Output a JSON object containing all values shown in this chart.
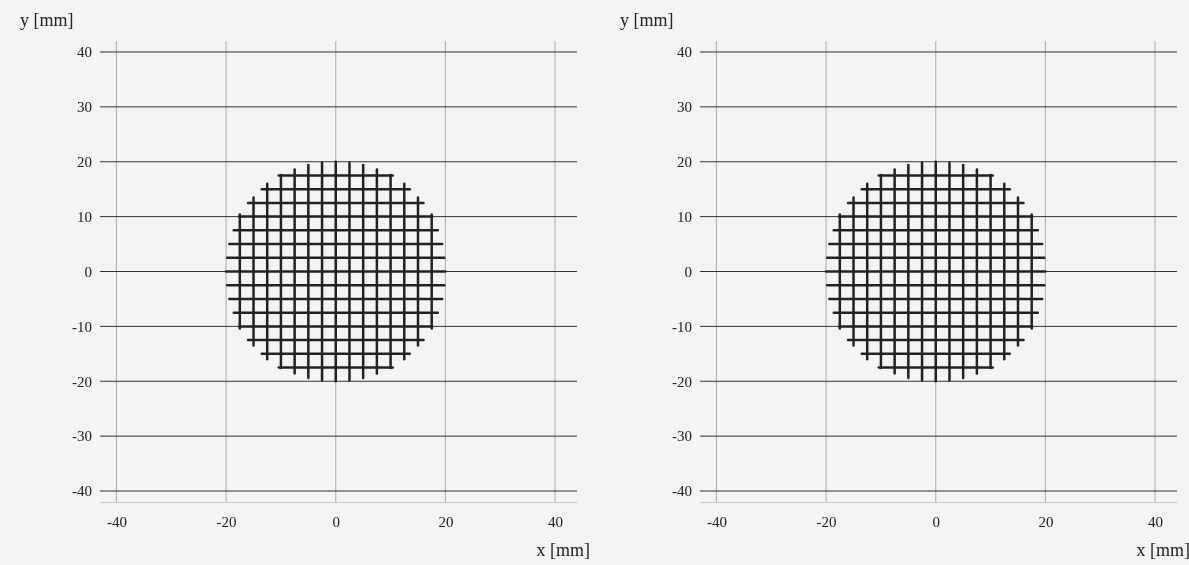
{
  "chart_data": [
    {
      "type": "line",
      "xlabel": "x [mm]",
      "ylabel": "y [mm]",
      "xlim": [
        -43,
        44
      ],
      "ylim": [
        -42,
        42
      ],
      "xticks": [
        -40,
        -20,
        0,
        20,
        40
      ],
      "yticks": [
        -40,
        -30,
        -20,
        -10,
        0,
        10,
        20,
        30,
        40
      ],
      "grid": true,
      "series": [
        {
          "color": "#222222",
          "x": [
            -10.4,
            10.4
          ],
          "values": [
            -17.5,
            -17.5
          ]
        },
        {
          "color": "#222222",
          "x": [
            -13.5,
            13.5
          ],
          "values": [
            -15,
            -15
          ]
        },
        {
          "color": "#222222",
          "x": [
            -16,
            16
          ],
          "values": [
            -12.5,
            -12.5
          ]
        },
        {
          "color": "#222222",
          "x": [
            -17.6,
            17.6
          ],
          "values": [
            -10,
            -10
          ]
        },
        {
          "color": "#222222",
          "x": [
            -18.6,
            18.6
          ],
          "values": [
            -7.5,
            -7.5
          ]
        },
        {
          "color": "#222222",
          "x": [
            -19.4,
            19.4
          ],
          "values": [
            -5,
            -5
          ]
        },
        {
          "color": "#222222",
          "x": [
            -19.8,
            19.8
          ],
          "values": [
            -2.5,
            -2.5
          ]
        },
        {
          "color": "#222222",
          "x": [
            -20,
            20
          ],
          "values": [
            0,
            0
          ]
        },
        {
          "color": "#222222",
          "x": [
            -19.8,
            19.8
          ],
          "values": [
            2.5,
            2.5
          ]
        },
        {
          "color": "#222222",
          "x": [
            -19.4,
            19.4
          ],
          "values": [
            5,
            5
          ]
        },
        {
          "color": "#222222",
          "x": [
            -18.6,
            18.6
          ],
          "values": [
            7.5,
            7.5
          ]
        },
        {
          "color": "#222222",
          "x": [
            -17.6,
            17.6
          ],
          "values": [
            10,
            10
          ]
        },
        {
          "color": "#222222",
          "x": [
            -16,
            16
          ],
          "values": [
            12.5,
            12.5
          ]
        },
        {
          "color": "#222222",
          "x": [
            -13.5,
            13.5
          ],
          "values": [
            15,
            15
          ]
        },
        {
          "color": "#222222",
          "x": [
            -10.4,
            10.4
          ],
          "values": [
            17.5,
            17.5
          ]
        },
        {
          "color": "#222222",
          "x": [
            -17.5,
            -17.5
          ],
          "values": [
            -10.4,
            10.4
          ]
        },
        {
          "color": "#222222",
          "x": [
            -15,
            -15
          ],
          "values": [
            -13.5,
            13.5
          ]
        },
        {
          "color": "#222222",
          "x": [
            -12.5,
            -12.5
          ],
          "values": [
            -16,
            16
          ]
        },
        {
          "color": "#222222",
          "x": [
            -10,
            -10
          ],
          "values": [
            -17.6,
            17.6
          ]
        },
        {
          "color": "#222222",
          "x": [
            -7.5,
            -7.5
          ],
          "values": [
            -18.6,
            18.6
          ]
        },
        {
          "color": "#222222",
          "x": [
            -5,
            -5
          ],
          "values": [
            -19.4,
            19.4
          ]
        },
        {
          "color": "#222222",
          "x": [
            -2.5,
            -2.5
          ],
          "values": [
            -19.8,
            19.8
          ]
        },
        {
          "color": "#222222",
          "x": [
            0,
            0
          ],
          "values": [
            -20,
            20
          ]
        },
        {
          "color": "#222222",
          "x": [
            2.5,
            2.5
          ],
          "values": [
            -19.8,
            19.8
          ]
        },
        {
          "color": "#222222",
          "x": [
            5,
            5
          ],
          "values": [
            -19.4,
            19.4
          ]
        },
        {
          "color": "#222222",
          "x": [
            7.5,
            7.5
          ],
          "values": [
            -18.6,
            18.6
          ]
        },
        {
          "color": "#222222",
          "x": [
            10,
            10
          ],
          "values": [
            -17.6,
            17.6
          ]
        },
        {
          "color": "#222222",
          "x": [
            12.5,
            12.5
          ],
          "values": [
            -16,
            16
          ]
        },
        {
          "color": "#222222",
          "x": [
            15,
            15
          ],
          "values": [
            -13.5,
            13.5
          ]
        },
        {
          "color": "#222222",
          "x": [
            17.5,
            17.5
          ],
          "values": [
            -10.4,
            10.4
          ]
        }
      ]
    },
    {
      "type": "line",
      "xlabel": "x [mm]",
      "ylabel": "y [mm]",
      "xlim": [
        -43,
        44
      ],
      "ylim": [
        -42,
        42
      ],
      "xticks": [
        -40,
        -20,
        0,
        20,
        40
      ],
      "yticks": [
        -40,
        -30,
        -20,
        -10,
        0,
        10,
        20,
        30,
        40
      ],
      "grid": true,
      "series": [
        {
          "color": "#222222",
          "x": [
            -10.4,
            10.4
          ],
          "values": [
            -17.5,
            -17.5
          ]
        },
        {
          "color": "#222222",
          "x": [
            -13.5,
            13.5
          ],
          "values": [
            -15,
            -15
          ]
        },
        {
          "color": "#222222",
          "x": [
            -16,
            16
          ],
          "values": [
            -12.5,
            -12.5
          ]
        },
        {
          "color": "#222222",
          "x": [
            -17.6,
            17.6
          ],
          "values": [
            -10,
            -10
          ]
        },
        {
          "color": "#222222",
          "x": [
            -18.6,
            18.6
          ],
          "values": [
            -7.5,
            -7.5
          ]
        },
        {
          "color": "#222222",
          "x": [
            -19.4,
            19.4
          ],
          "values": [
            -5,
            -5
          ]
        },
        {
          "color": "#222222",
          "x": [
            -19.8,
            19.8
          ],
          "values": [
            -2.5,
            -2.5
          ]
        },
        {
          "color": "#222222",
          "x": [
            -20,
            20
          ],
          "values": [
            0,
            0
          ]
        },
        {
          "color": "#222222",
          "x": [
            -19.8,
            19.8
          ],
          "values": [
            2.5,
            2.5
          ]
        },
        {
          "color": "#222222",
          "x": [
            -19.4,
            19.4
          ],
          "values": [
            5,
            5
          ]
        },
        {
          "color": "#222222",
          "x": [
            -18.6,
            18.6
          ],
          "values": [
            7.5,
            7.5
          ]
        },
        {
          "color": "#222222",
          "x": [
            -17.6,
            17.6
          ],
          "values": [
            10,
            10
          ]
        },
        {
          "color": "#222222",
          "x": [
            -16,
            16
          ],
          "values": [
            12.5,
            12.5
          ]
        },
        {
          "color": "#222222",
          "x": [
            -13.5,
            13.5
          ],
          "values": [
            15,
            15
          ]
        },
        {
          "color": "#222222",
          "x": [
            -10.4,
            10.4
          ],
          "values": [
            17.5,
            17.5
          ]
        },
        {
          "color": "#222222",
          "x": [
            -17.5,
            -17.5
          ],
          "values": [
            -10.4,
            10.4
          ]
        },
        {
          "color": "#222222",
          "x": [
            -15,
            -15
          ],
          "values": [
            -13.5,
            13.5
          ]
        },
        {
          "color": "#222222",
          "x": [
            -12.5,
            -12.5
          ],
          "values": [
            -16,
            16
          ]
        },
        {
          "color": "#222222",
          "x": [
            -10,
            -10
          ],
          "values": [
            -17.6,
            17.6
          ]
        },
        {
          "color": "#222222",
          "x": [
            -7.5,
            -7.5
          ],
          "values": [
            -18.6,
            18.6
          ]
        },
        {
          "color": "#222222",
          "x": [
            -5,
            -5
          ],
          "values": [
            -19.4,
            19.4
          ]
        },
        {
          "color": "#222222",
          "x": [
            -2.5,
            -2.5
          ],
          "values": [
            -19.8,
            19.8
          ]
        },
        {
          "color": "#222222",
          "x": [
            0,
            0
          ],
          "values": [
            -20,
            20
          ]
        },
        {
          "color": "#222222",
          "x": [
            2.5,
            2.5
          ],
          "values": [
            -19.8,
            19.8
          ]
        },
        {
          "color": "#222222",
          "x": [
            5,
            5
          ],
          "values": [
            -19.4,
            19.4
          ]
        },
        {
          "color": "#222222",
          "x": [
            7.5,
            7.5
          ],
          "values": [
            -18.6,
            18.6
          ]
        },
        {
          "color": "#222222",
          "x": [
            10,
            10
          ],
          "values": [
            -17.6,
            17.6
          ]
        },
        {
          "color": "#222222",
          "x": [
            12.5,
            12.5
          ],
          "values": [
            -16,
            16
          ]
        },
        {
          "color": "#222222",
          "x": [
            15,
            15
          ],
          "values": [
            -13.5,
            13.5
          ]
        },
        {
          "color": "#222222",
          "x": [
            17.5,
            17.5
          ],
          "values": [
            -10.4,
            10.4
          ]
        }
      ]
    }
  ]
}
